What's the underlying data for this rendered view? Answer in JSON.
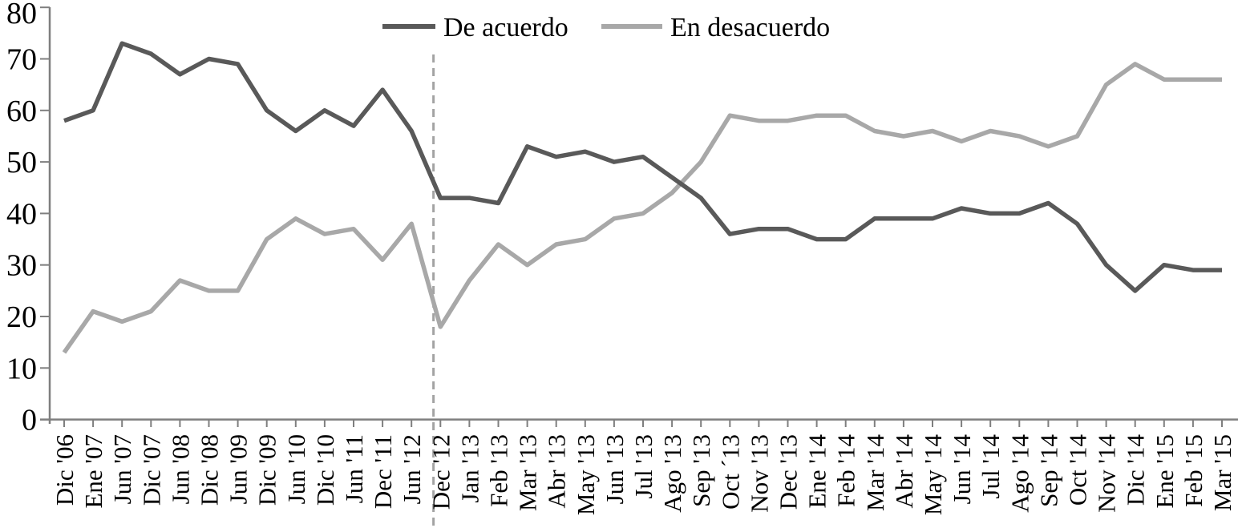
{
  "chart_data": {
    "type": "line",
    "title": "",
    "xlabel": "",
    "ylabel": "",
    "ylim": [
      0,
      80
    ],
    "yticks": [
      0,
      10,
      20,
      30,
      40,
      50,
      60,
      70,
      80
    ],
    "grid": false,
    "legend_position": "top-center",
    "categories": [
      "Dic '06",
      "Ene '07",
      "Jun '07",
      "Dic '07",
      "Jun '08",
      "Dic '08",
      "Jun '09",
      "Dic '09",
      "Jun '10",
      "Dic '10",
      "Jun '11",
      "Dec '11",
      "Jun '12",
      "Dec '12",
      "Jan '13",
      "Feb '13",
      "Mar '13",
      "Abr '13",
      "May '13",
      "Jun '13",
      "Jul '13",
      "Ago '13",
      "Sep '13",
      "Oct ´13",
      "Nov '13",
      "Dec '13",
      "Ene '14",
      "Feb '14",
      "Mar '14",
      "Abr '14",
      "May '14",
      "Jun '14",
      "Jul '14",
      "Ago '14",
      "Sep '14",
      "Oct '14",
      "Nov '14",
      "Dic '14",
      "Ene '15",
      "Feb '15",
      "Mar '15"
    ],
    "series": [
      {
        "name": "De acuerdo",
        "color": "#595959",
        "values": [
          58,
          60,
          73,
          71,
          67,
          70,
          69,
          60,
          56,
          60,
          57,
          64,
          56,
          43,
          43,
          42,
          53,
          51,
          52,
          50,
          51,
          47,
          43,
          36,
          37,
          37,
          35,
          35,
          39,
          39,
          39,
          41,
          40,
          40,
          42,
          38,
          30,
          25,
          30,
          29,
          29
        ]
      },
      {
        "name": "En desacuerdo",
        "color": "#a8a8a8",
        "values": [
          13,
          21,
          19,
          21,
          27,
          25,
          25,
          35,
          39,
          36,
          37,
          31,
          38,
          18,
          27,
          34,
          30,
          34,
          35,
          39,
          40,
          44,
          50,
          59,
          58,
          58,
          59,
          59,
          56,
          55,
          56,
          54,
          56,
          55,
          53,
          55,
          65,
          69,
          66,
          66,
          66
        ]
      }
    ],
    "marker_line": {
      "style": "dashed",
      "color": "#a3a3a3",
      "between": [
        "Jun '12",
        "Dec '12"
      ],
      "index": 12.76
    }
  },
  "colors": {
    "axis": "#7f7f7f",
    "text": "#000000",
    "background": "#ffffff"
  }
}
